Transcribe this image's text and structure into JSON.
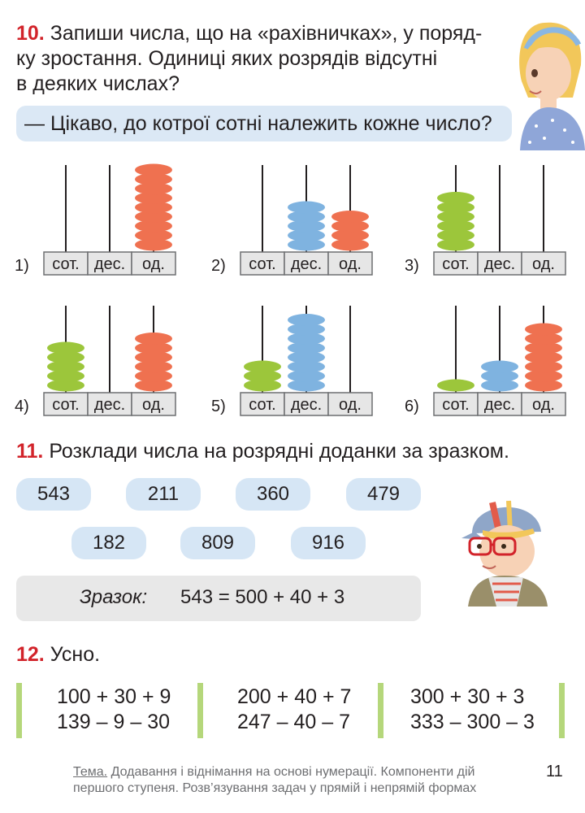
{
  "task10": {
    "number": "10.",
    "line1": "Запиши числа, що на «рахівничках», у поряд-",
    "line2": "ку зростання. Одиниці яких розрядів відсутні",
    "line3": "в деяких числах?",
    "question": "— Цікаво, до котрої сотні належить кожне число?",
    "abaci": [
      {
        "index": "1)",
        "hundreds": 0,
        "tens": 0,
        "ones": 9
      },
      {
        "index": "2)",
        "hundreds": 0,
        "tens": 5,
        "ones": 4
      },
      {
        "index": "3)",
        "hundreds": 6,
        "tens": 0,
        "ones": 0
      },
      {
        "index": "4)",
        "hundreds": 5,
        "tens": 0,
        "ones": 6
      },
      {
        "index": "5)",
        "hundreds": 3,
        "tens": 8,
        "ones": 0
      },
      {
        "index": "6)",
        "hundreds": 1,
        "tens": 3,
        "ones": 7
      }
    ],
    "columns": [
      "сот.",
      "дес.",
      "од."
    ],
    "colors": {
      "hundreds": "#9cc63b",
      "tens": "#7fb3e0",
      "ones": "#ef7150"
    }
  },
  "task11": {
    "number": "11.",
    "text": "Розклади числа на розрядні доданки за зразком.",
    "numbers": [
      "543",
      "211",
      "360",
      "479",
      "182",
      "809",
      "916"
    ],
    "sample_label": "Зразок:",
    "sample_expr": "543 = 500 + 40 + 3"
  },
  "task12": {
    "number": "12.",
    "text": "Усно.",
    "groups": [
      [
        "100 + 30 + 9",
        "139 – 9 – 30"
      ],
      [
        "200 + 40 + 7",
        "247 – 40 – 7"
      ],
      [
        "300 + 30 + 3",
        "333 – 300 – 3"
      ]
    ]
  },
  "footer": {
    "tema": "Тема.",
    "line1": "Додавання і віднімання на основі нумерації. Компоненти дій",
    "line2": "першого ступеня. Розв’язування задач у прямій і непрямій формах",
    "page": "11"
  }
}
